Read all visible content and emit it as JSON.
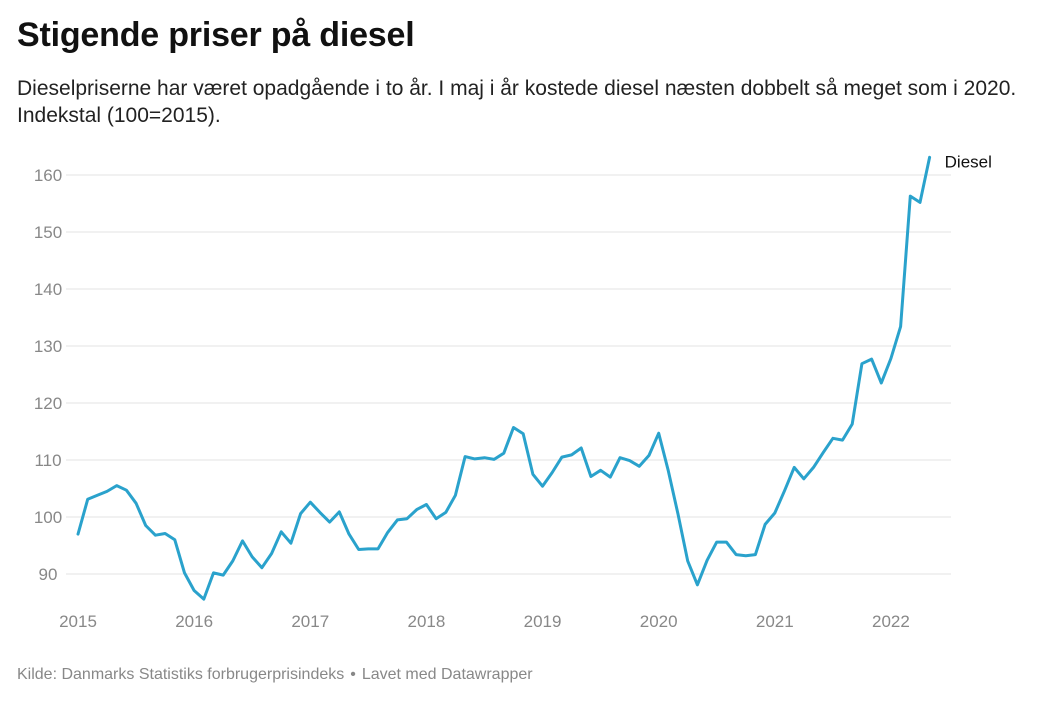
{
  "title": "Stigende priser på diesel",
  "subtitle": "Dieselpriserne har været opadgående i to år. I maj i år kostede diesel næsten dobbelt så meget som i 2020. Indekstal (100=2015).",
  "footer": {
    "source": "Kilde: Danmarks Statistiks forbrugerprisindeks",
    "separator": "•",
    "credit": "Lavet med Datawrapper"
  },
  "colors": {
    "line": "#2aa2cc",
    "grid": "#e3e3e3"
  },
  "chart_data": {
    "type": "line",
    "title": "Stigende priser på diesel",
    "x_ticks": [
      "2015",
      "2016",
      "2017",
      "2018",
      "2019",
      "2020",
      "2021",
      "2022"
    ],
    "y_ticks": [
      90,
      100,
      110,
      120,
      130,
      140,
      150,
      160
    ],
    "xlim": [
      "2015-01",
      "2022-07"
    ],
    "ylim": [
      85,
      163
    ],
    "grid": true,
    "legend": "label at end of line",
    "series": [
      {
        "name": "Diesel",
        "x": [
          "2015-01",
          "2015-02",
          "2015-03",
          "2015-04",
          "2015-05",
          "2015-06",
          "2015-07",
          "2015-08",
          "2015-09",
          "2015-10",
          "2015-11",
          "2015-12",
          "2016-01",
          "2016-02",
          "2016-03",
          "2016-04",
          "2016-05",
          "2016-06",
          "2016-07",
          "2016-08",
          "2016-09",
          "2016-10",
          "2016-11",
          "2016-12",
          "2017-01",
          "2017-02",
          "2017-03",
          "2017-04",
          "2017-05",
          "2017-06",
          "2017-07",
          "2017-08",
          "2017-09",
          "2017-10",
          "2017-11",
          "2017-12",
          "2018-01",
          "2018-02",
          "2018-03",
          "2018-04",
          "2018-05",
          "2018-06",
          "2018-07",
          "2018-08",
          "2018-09",
          "2018-10",
          "2018-11",
          "2018-12",
          "2019-01",
          "2019-02",
          "2019-03",
          "2019-04",
          "2019-05",
          "2019-06",
          "2019-07",
          "2019-08",
          "2019-09",
          "2019-10",
          "2019-11",
          "2019-12",
          "2020-01",
          "2020-02",
          "2020-03",
          "2020-04",
          "2020-05",
          "2020-06",
          "2020-07",
          "2020-08",
          "2020-09",
          "2020-10",
          "2020-11",
          "2020-12",
          "2021-01",
          "2021-02",
          "2021-03",
          "2021-04",
          "2021-05",
          "2021-06",
          "2021-07",
          "2021-08",
          "2021-09",
          "2021-10",
          "2021-11",
          "2021-12",
          "2022-01",
          "2022-02",
          "2022-03",
          "2022-04",
          "2022-05"
        ],
        "values": [
          97.0,
          103.1,
          103.8,
          104.5,
          105.5,
          104.7,
          102.4,
          98.5,
          96.8,
          97.1,
          96.0,
          90.2,
          87.1,
          85.6,
          90.2,
          89.8,
          92.3,
          95.8,
          93.0,
          91.1,
          93.6,
          97.4,
          95.4,
          100.6,
          102.6,
          100.8,
          99.1,
          100.9,
          97.0,
          94.3,
          94.4,
          94.4,
          97.3,
          99.5,
          99.7,
          101.3,
          102.2,
          99.7,
          100.8,
          103.8,
          110.6,
          110.2,
          110.4,
          110.1,
          111.2,
          115.7,
          114.6,
          107.5,
          105.4,
          107.8,
          110.5,
          110.9,
          112.1,
          107.1,
          108.2,
          107.0,
          110.4,
          109.9,
          108.9,
          110.8,
          114.7,
          108.1,
          100.5,
          92.3,
          88.1,
          92.4,
          95.6,
          95.6,
          93.4,
          93.2,
          93.4,
          98.7,
          100.7,
          104.6,
          108.7,
          106.7,
          108.7,
          111.3,
          113.8,
          113.5,
          116.3,
          126.9,
          127.7,
          123.5,
          127.8,
          133.4,
          156.3,
          155.2,
          163.1
        ]
      }
    ]
  }
}
